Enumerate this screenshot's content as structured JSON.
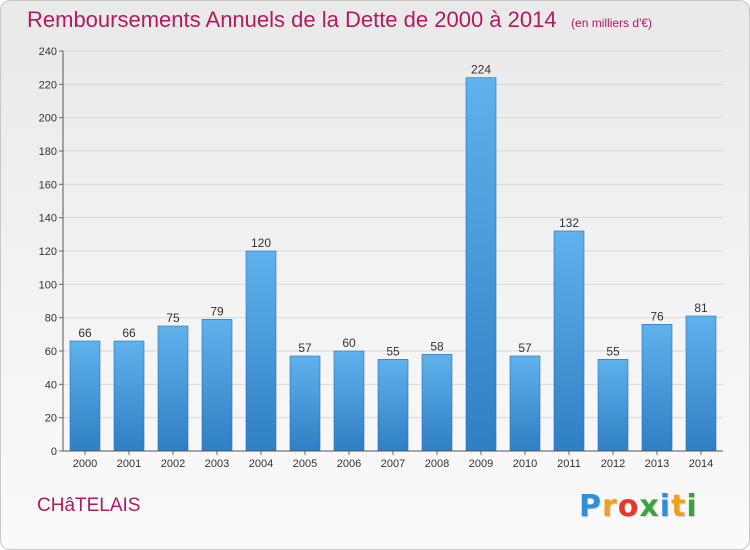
{
  "chart_data": {
    "type": "bar",
    "title": "Remboursements Annuels de la Dette de 2000 à 2014",
    "subtitle": "(en milliers d'€)",
    "categories": [
      "2000",
      "2001",
      "2002",
      "2003",
      "2004",
      "2005",
      "2006",
      "2007",
      "2008",
      "2009",
      "2010",
      "2011",
      "2012",
      "2013",
      "2014"
    ],
    "values": [
      66,
      66,
      75,
      79,
      120,
      57,
      60,
      55,
      58,
      224,
      57,
      132,
      55,
      76,
      81
    ],
    "ylim": [
      0,
      240
    ],
    "yticks": [
      0,
      20,
      40,
      60,
      80,
      100,
      120,
      140,
      160,
      180,
      200,
      220,
      240
    ],
    "grid": true,
    "bar_color": "#4a9ede"
  },
  "commune": "CHâTELAIS",
  "logo": {
    "text": "Proxiti",
    "letters": [
      {
        "ch": "P",
        "color": "#2f8fd6"
      },
      {
        "ch": "r",
        "color": "#f0a020"
      },
      {
        "ch": "o",
        "color": "#e23a2a"
      },
      {
        "ch": "x",
        "color": "#3aa53a"
      },
      {
        "ch": "i",
        "color": "#2f8fd6"
      },
      {
        "ch": "t",
        "color": "#f0a020"
      },
      {
        "ch": "i",
        "color": "#3aa53a"
      }
    ]
  }
}
